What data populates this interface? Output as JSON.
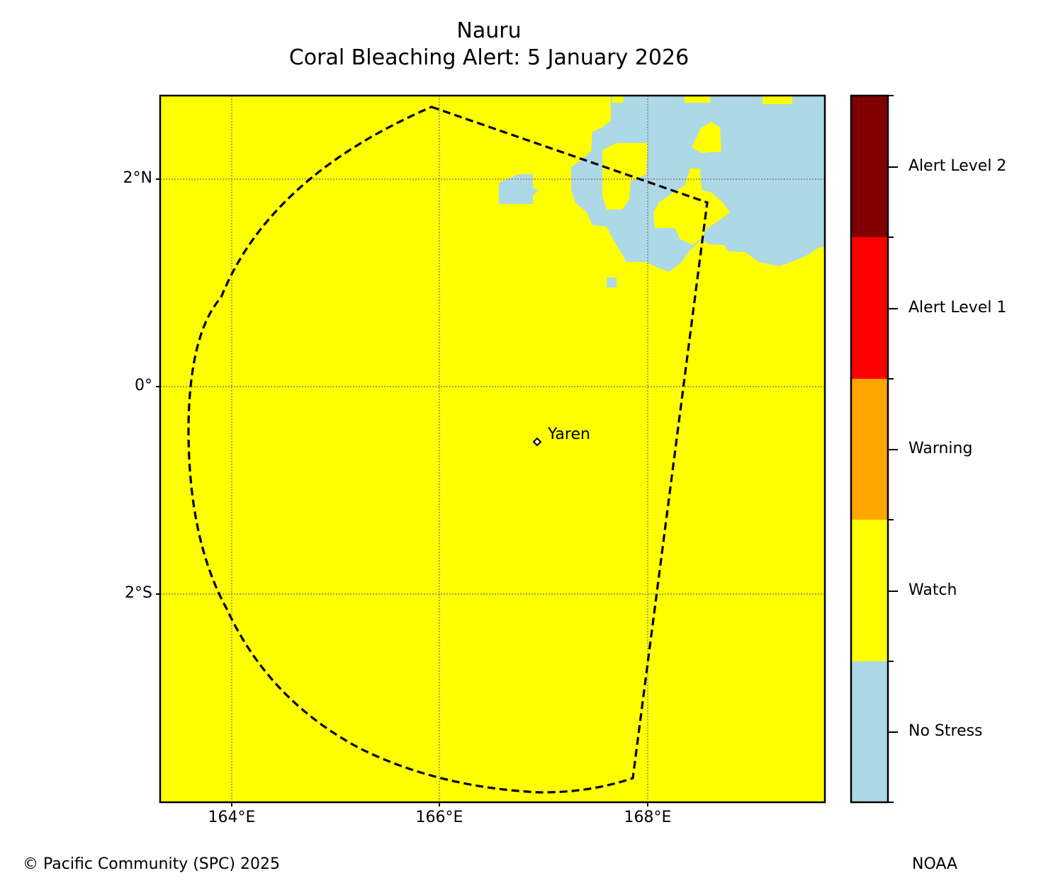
{
  "title": "Nauru",
  "subtitle": "Coral Bleaching Alert: 5 January 2026",
  "map": {
    "latitude_labels": [
      "2°N",
      "0°",
      "2°S"
    ],
    "longitude_labels": [
      "164°E",
      "166°E",
      "168°E"
    ],
    "extent": {
      "lon_min": 163.3,
      "lon_max": 169.7,
      "lat_min": -3.8,
      "lat_max": 2.8
    },
    "gridlines": "dotted gray",
    "place_label": "Yaren",
    "dominant_category": "Watch",
    "no_stress_region": "northeast corner"
  },
  "legend": {
    "categories": [
      {
        "label": "No Stress",
        "color": "#add8e6"
      },
      {
        "label": "Watch",
        "color": "#ffff00"
      },
      {
        "label": "Warning",
        "color": "#ffa500"
      },
      {
        "label": "Alert Level 1",
        "color": "#ff0000"
      },
      {
        "label": "Alert Level 2",
        "color": "#800000"
      }
    ]
  },
  "footer": {
    "credit": "© Pacific Community (SPC) 2025",
    "source": "NOAA"
  }
}
